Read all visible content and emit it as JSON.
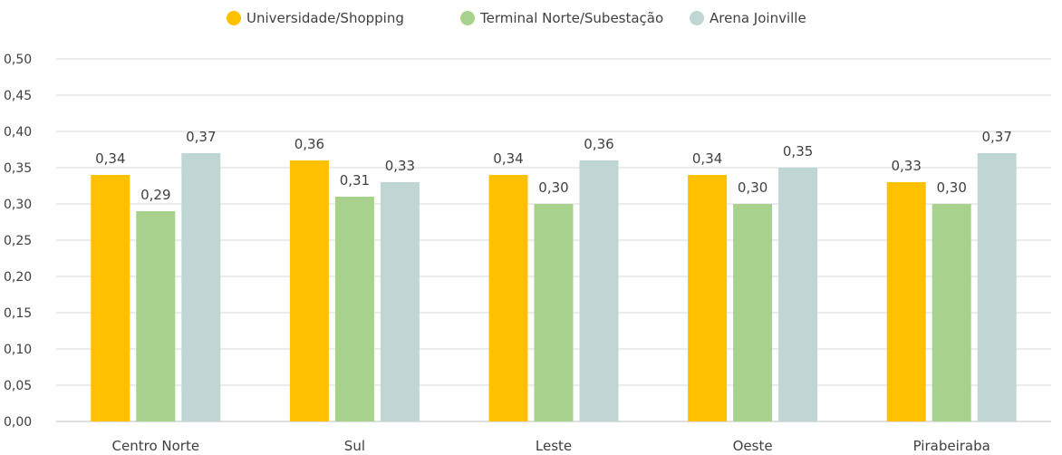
{
  "chart_data": {
    "type": "bar",
    "categories": [
      "Centro Norte",
      "Sul",
      "Leste",
      "Oeste",
      "Pirabeiraba"
    ],
    "series": [
      {
        "name": "Universidade/Shopping",
        "color": "#ffc000",
        "values": [
          0.34,
          0.36,
          0.34,
          0.34,
          0.33
        ],
        "labels": [
          "0,34",
          "0,36",
          "0,34",
          "0,34",
          "0,33"
        ]
      },
      {
        "name": "Terminal Norte/Subestação",
        "color": "#a9d18e",
        "values": [
          0.29,
          0.31,
          0.3,
          0.3,
          0.3
        ],
        "labels": [
          "0,29",
          "0,31",
          "0,30",
          "0,30",
          "0,30"
        ]
      },
      {
        "name": "Arena Joinville",
        "color": "#c0d6d4",
        "values": [
          0.37,
          0.33,
          0.36,
          0.35,
          0.37
        ],
        "labels": [
          "0,37",
          "0,33",
          "0,36",
          "0,35",
          "0,37"
        ]
      }
    ],
    "y_ticks": [
      "0,00",
      "0,05",
      "0,10",
      "0,15",
      "0,20",
      "0,25",
      "0,30",
      "0,35",
      "0,40",
      "0,45",
      "0,50"
    ],
    "ylim": [
      0,
      0.5
    ],
    "grid": true,
    "legend_position": "top"
  }
}
